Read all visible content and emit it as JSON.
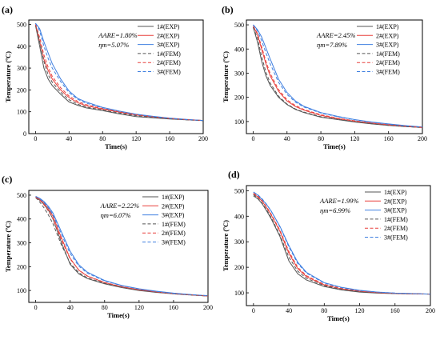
{
  "chart_data": [
    {
      "type": "line",
      "panel": "(a)",
      "xlabel": "Time(s)",
      "ylabel": "Temperature (ºC)",
      "xlim": [
        -8,
        200
      ],
      "ylim": [
        0,
        520
      ],
      "xticks": [
        0,
        40,
        80,
        120,
        160,
        200
      ],
      "yticks": [
        0,
        100,
        200,
        300,
        400,
        500
      ],
      "legend_position": "top-right",
      "annotations": [
        "AARE=1.80%",
        "ηm=5.07%"
      ],
      "series": [
        {
          "name": "1#(EXP)",
          "color": "#555555",
          "dash": "solid",
          "x": [
            0,
            5,
            10,
            15,
            20,
            30,
            40,
            50,
            60,
            80,
            100,
            120,
            140,
            160,
            180,
            200
          ],
          "y": [
            495,
            400,
            300,
            250,
            220,
            180,
            145,
            130,
            118,
            105,
            90,
            78,
            72,
            67,
            63,
            60
          ]
        },
        {
          "name": "2#(EXP)",
          "color": "#e8413d",
          "dash": "solid",
          "x": [
            0,
            5,
            10,
            15,
            20,
            30,
            40,
            50,
            60,
            80,
            100,
            120,
            140,
            160,
            180,
            200
          ],
          "y": [
            500,
            420,
            340,
            290,
            250,
            200,
            165,
            142,
            128,
            112,
            98,
            85,
            76,
            69,
            64,
            60
          ]
        },
        {
          "name": "3#(EXP)",
          "color": "#3f7fe0",
          "dash": "solid",
          "x": [
            0,
            5,
            10,
            15,
            20,
            30,
            40,
            50,
            60,
            80,
            100,
            120,
            140,
            160,
            180,
            200
          ],
          "y": [
            505,
            480,
            420,
            370,
            320,
            250,
            195,
            162,
            145,
            120,
            103,
            89,
            79,
            71,
            65,
            60
          ]
        },
        {
          "name": "1#(FEM)",
          "color": "#555555",
          "dash": "dashed",
          "x": [
            0,
            5,
            10,
            15,
            20,
            30,
            40,
            50,
            60,
            80,
            100,
            120,
            140,
            160,
            180,
            200
          ],
          "y": [
            495,
            420,
            330,
            270,
            235,
            190,
            155,
            135,
            122,
            108,
            94,
            82,
            74,
            68,
            63,
            59
          ]
        },
        {
          "name": "2#(FEM)",
          "color": "#e8413d",
          "dash": "dashed",
          "x": [
            0,
            5,
            10,
            15,
            20,
            30,
            40,
            50,
            60,
            80,
            100,
            120,
            140,
            160,
            180,
            200
          ],
          "y": [
            500,
            440,
            360,
            305,
            262,
            210,
            172,
            148,
            133,
            115,
            100,
            87,
            77,
            70,
            64,
            60
          ]
        },
        {
          "name": "3#(FEM)",
          "color": "#3f7fe0",
          "dash": "dashed",
          "x": [
            0,
            5,
            10,
            15,
            20,
            30,
            40,
            50,
            60,
            80,
            100,
            120,
            140,
            160,
            180,
            200
          ],
          "y": [
            505,
            470,
            400,
            345,
            300,
            238,
            188,
            158,
            140,
            118,
            102,
            88,
            78,
            70,
            64,
            60
          ]
        }
      ]
    },
    {
      "type": "line",
      "panel": "(b)",
      "xlabel": "Time(s)",
      "ylabel": "Temperature (ºC)",
      "xlim": [
        -8,
        200
      ],
      "ylim": [
        50,
        520
      ],
      "xticks": [
        0,
        40,
        80,
        120,
        160,
        200
      ],
      "yticks": [
        100,
        200,
        300,
        400,
        500
      ],
      "legend_position": "top-right",
      "annotations": [
        "AARE=2.45%",
        "ηm=7.89%"
      ],
      "series": [
        {
          "name": "1#(EXP)",
          "color": "#555555",
          "dash": "solid",
          "x": [
            0,
            5,
            10,
            15,
            20,
            30,
            40,
            50,
            60,
            80,
            100,
            120,
            140,
            160,
            180,
            200
          ],
          "y": [
            490,
            430,
            350,
            290,
            250,
            200,
            170,
            150,
            137,
            118,
            108,
            98,
            90,
            84,
            79,
            75
          ]
        },
        {
          "name": "2#(EXP)",
          "color": "#e8413d",
          "dash": "solid",
          "x": [
            0,
            5,
            10,
            15,
            20,
            30,
            40,
            50,
            60,
            80,
            100,
            120,
            140,
            160,
            180,
            200
          ],
          "y": [
            495,
            460,
            400,
            340,
            290,
            225,
            185,
            162,
            147,
            125,
            112,
            101,
            93,
            86,
            80,
            75
          ]
        },
        {
          "name": "3#(EXP)",
          "color": "#3f7fe0",
          "dash": "solid",
          "x": [
            0,
            5,
            10,
            15,
            20,
            30,
            40,
            50,
            60,
            80,
            100,
            120,
            140,
            160,
            180,
            200
          ],
          "y": [
            500,
            480,
            450,
            405,
            360,
            275,
            220,
            185,
            163,
            137,
            121,
            108,
            98,
            90,
            83,
            77
          ]
        },
        {
          "name": "1#(FEM)",
          "color": "#555555",
          "dash": "dashed",
          "x": [
            0,
            5,
            10,
            15,
            20,
            30,
            40,
            50,
            60,
            80,
            100,
            120,
            140,
            160,
            180,
            200
          ],
          "y": [
            490,
            445,
            370,
            305,
            260,
            205,
            172,
            152,
            139,
            120,
            109,
            99,
            91,
            84,
            79,
            75
          ]
        },
        {
          "name": "2#(FEM)",
          "color": "#e8413d",
          "dash": "dashed",
          "x": [
            0,
            5,
            10,
            15,
            20,
            30,
            40,
            50,
            60,
            80,
            100,
            120,
            140,
            160,
            180,
            200
          ],
          "y": [
            495,
            465,
            410,
            350,
            300,
            232,
            190,
            166,
            150,
            128,
            114,
            103,
            94,
            87,
            81,
            76
          ]
        },
        {
          "name": "3#(FEM)",
          "color": "#3f7fe0",
          "dash": "dashed",
          "x": [
            0,
            5,
            10,
            15,
            20,
            30,
            40,
            50,
            60,
            80,
            100,
            120,
            140,
            160,
            180,
            200
          ],
          "y": [
            500,
            475,
            435,
            385,
            340,
            262,
            212,
            180,
            160,
            135,
            120,
            107,
            97,
            89,
            82,
            77
          ]
        }
      ]
    },
    {
      "type": "line",
      "panel": "(c)",
      "xlabel": "Time(s)",
      "ylabel": "Temperature (ºC)",
      "xlim": [
        -8,
        200
      ],
      "ylim": [
        50,
        520
      ],
      "xticks": [
        0,
        40,
        80,
        120,
        160,
        200
      ],
      "yticks": [
        100,
        200,
        300,
        400,
        500
      ],
      "legend_position": "top-right",
      "annotations": [
        "AARE=2.22%",
        "ηm=6.07%"
      ],
      "series": [
        {
          "name": "1#(EXP)",
          "color": "#555555",
          "dash": "solid",
          "x": [
            0,
            5,
            10,
            15,
            20,
            30,
            40,
            50,
            60,
            80,
            100,
            120,
            140,
            160,
            180,
            200
          ],
          "y": [
            490,
            478,
            460,
            435,
            400,
            300,
            210,
            170,
            150,
            128,
            112,
            100,
            92,
            86,
            81,
            77
          ]
        },
        {
          "name": "2#(EXP)",
          "color": "#e8413d",
          "dash": "solid",
          "x": [
            0,
            5,
            10,
            15,
            20,
            30,
            40,
            50,
            60,
            80,
            100,
            120,
            140,
            160,
            180,
            200
          ],
          "y": [
            492,
            482,
            465,
            442,
            412,
            320,
            235,
            185,
            160,
            133,
            115,
            103,
            94,
            87,
            82,
            77
          ]
        },
        {
          "name": "3#(EXP)",
          "color": "#3f7fe0",
          "dash": "solid",
          "x": [
            0,
            5,
            10,
            15,
            20,
            30,
            40,
            50,
            60,
            80,
            100,
            120,
            140,
            160,
            180,
            200
          ],
          "y": [
            495,
            486,
            472,
            452,
            425,
            345,
            265,
            208,
            177,
            142,
            121,
            107,
            97,
            89,
            83,
            78
          ]
        },
        {
          "name": "1#(FEM)",
          "color": "#555555",
          "dash": "dashed",
          "x": [
            0,
            5,
            10,
            15,
            20,
            30,
            40,
            50,
            60,
            80,
            100,
            120,
            140,
            160,
            180,
            200
          ],
          "y": [
            490,
            470,
            445,
            415,
            380,
            290,
            215,
            175,
            153,
            130,
            113,
            101,
            93,
            86,
            81,
            77
          ]
        },
        {
          "name": "2#(FEM)",
          "color": "#e8413d",
          "dash": "dashed",
          "x": [
            0,
            5,
            10,
            15,
            20,
            30,
            40,
            50,
            60,
            80,
            100,
            120,
            140,
            160,
            180,
            200
          ],
          "y": [
            492,
            478,
            458,
            432,
            400,
            312,
            232,
            186,
            161,
            134,
            116,
            103,
            94,
            87,
            82,
            77
          ]
        },
        {
          "name": "3#(FEM)",
          "color": "#3f7fe0",
          "dash": "dashed",
          "x": [
            0,
            5,
            10,
            15,
            20,
            30,
            40,
            50,
            60,
            80,
            100,
            120,
            140,
            160,
            180,
            200
          ],
          "y": [
            495,
            484,
            468,
            446,
            418,
            335,
            255,
            202,
            173,
            140,
            120,
            106,
            96,
            88,
            83,
            78
          ]
        }
      ]
    },
    {
      "type": "line",
      "panel": "(d)",
      "xlabel": "Time(s)",
      "ylabel": "Temperature (ºC)",
      "xlim": [
        -8,
        200
      ],
      "ylim": [
        50,
        520
      ],
      "xticks": [
        0,
        40,
        80,
        120,
        160,
        200
      ],
      "yticks": [
        100,
        200,
        300,
        400,
        500
      ],
      "legend_position": "top-right",
      "annotations": [
        "AARE=1.99%",
        "ηm=6.99%"
      ],
      "series": [
        {
          "name": "1#(EXP)",
          "color": "#555555",
          "dash": "solid",
          "x": [
            0,
            5,
            10,
            15,
            20,
            30,
            40,
            50,
            60,
            80,
            100,
            120,
            140,
            160,
            180,
            200
          ],
          "y": [
            480,
            468,
            448,
            420,
            390,
            320,
            225,
            175,
            150,
            125,
            111,
            103,
            99,
            97,
            96,
            95
          ]
        },
        {
          "name": "2#(EXP)",
          "color": "#e8413d",
          "dash": "solid",
          "x": [
            0,
            5,
            10,
            15,
            20,
            30,
            40,
            50,
            60,
            80,
            100,
            120,
            140,
            160,
            180,
            200
          ],
          "y": [
            488,
            475,
            458,
            433,
            405,
            340,
            255,
            195,
            163,
            131,
            115,
            106,
            101,
            98,
            96,
            95
          ]
        },
        {
          "name": "3#(EXP)",
          "color": "#3f7fe0",
          "dash": "solid",
          "x": [
            0,
            5,
            10,
            15,
            20,
            30,
            40,
            50,
            60,
            80,
            100,
            120,
            140,
            160,
            180,
            200
          ],
          "y": [
            495,
            482,
            465,
            445,
            420,
            360,
            285,
            220,
            180,
            140,
            121,
            110,
            103,
            99,
            97,
            95
          ]
        },
        {
          "name": "1#(FEM)",
          "color": "#555555",
          "dash": "dashed",
          "x": [
            0,
            5,
            10,
            15,
            20,
            30,
            40,
            50,
            60,
            80,
            100,
            120,
            140,
            160,
            180,
            200
          ],
          "y": [
            485,
            470,
            450,
            425,
            395,
            325,
            240,
            185,
            157,
            128,
            113,
            104,
            100,
            97,
            96,
            95
          ]
        },
        {
          "name": "2#(FEM)",
          "color": "#e8413d",
          "dash": "dashed",
          "x": [
            0,
            5,
            10,
            15,
            20,
            30,
            40,
            50,
            60,
            80,
            100,
            120,
            140,
            160,
            180,
            200
          ],
          "y": [
            490,
            478,
            460,
            436,
            408,
            345,
            262,
            200,
            167,
            133,
            117,
            107,
            101,
            98,
            96,
            95
          ]
        },
        {
          "name": "3#(FEM)",
          "color": "#3f7fe0",
          "dash": "dashed",
          "x": [
            0,
            5,
            10,
            15,
            20,
            30,
            40,
            50,
            60,
            80,
            100,
            120,
            140,
            160,
            180,
            200
          ],
          "y": [
            495,
            484,
            467,
            446,
            420,
            358,
            280,
            215,
            177,
            138,
            120,
            109,
            103,
            99,
            97,
            95
          ]
        }
      ]
    }
  ]
}
